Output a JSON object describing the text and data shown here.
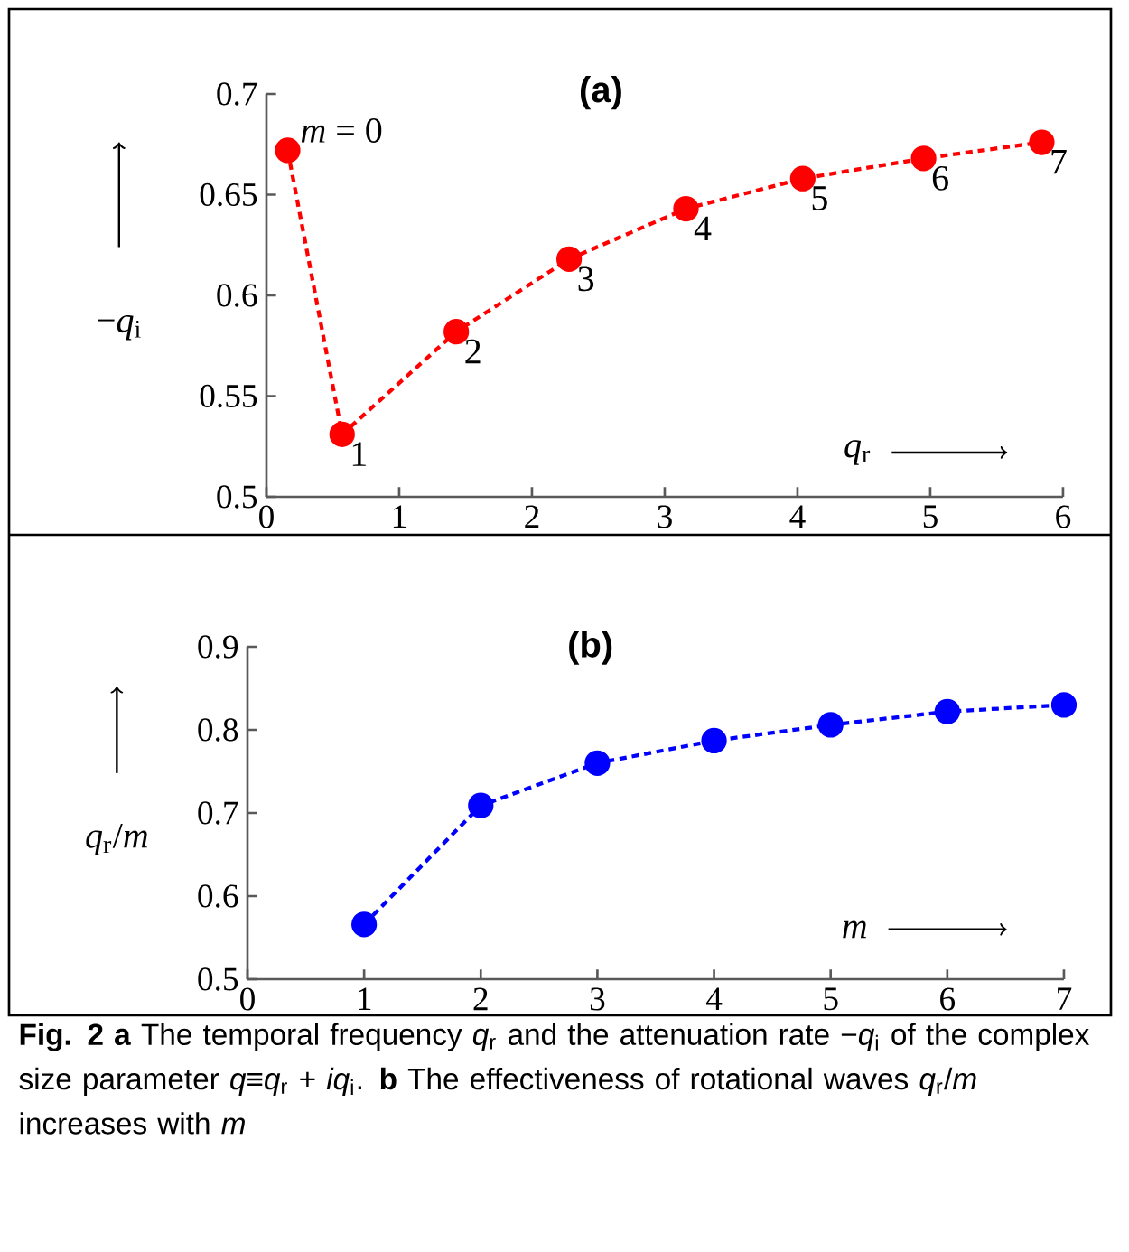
{
  "chart_data": [
    {
      "type": "line",
      "title": "(a)",
      "xlabel": "*q*$_{r}$",
      "ylabel": "−*q*$_{i}$",
      "series": [
        {
          "color": "#ff0000",
          "x": [
            0.16,
            0.57,
            1.43,
            2.28,
            3.16,
            4.04,
            4.95,
            5.84
          ],
          "values": [
            0.672,
            0.531,
            0.582,
            0.618,
            0.643,
            0.658,
            0.668,
            0.676
          ]
        }
      ],
      "xlim": [
        0,
        6
      ],
      "ylim": [
        0.5,
        0.7
      ],
      "xticks": [
        0,
        1,
        2,
        3,
        4,
        5,
        6
      ],
      "yticks": [
        0.5,
        0.55,
        0.6,
        0.65,
        0.7
      ],
      "marker": "circle",
      "line_style": "dashed",
      "annotations": [
        {
          "text": "*m* = 0",
          "x": 0.16,
          "y": 0.672
        },
        {
          "text": "1",
          "x": 0.57,
          "y": 0.531
        },
        {
          "text": "2",
          "x": 1.43,
          "y": 0.582
        },
        {
          "text": "3",
          "x": 2.28,
          "y": 0.618
        },
        {
          "text": "4",
          "x": 3.16,
          "y": 0.643
        },
        {
          "text": "5",
          "x": 4.04,
          "y": 0.658
        },
        {
          "text": "6",
          "x": 4.95,
          "y": 0.668
        },
        {
          "text": "7",
          "x": 5.84,
          "y": 0.676
        }
      ]
    },
    {
      "type": "line",
      "title": "(b)",
      "xlabel": "*m*",
      "ylabel": "*q*$_{r}$/*m*",
      "series": [
        {
          "color": "#0000ff",
          "x": [
            1,
            2,
            3,
            4,
            5,
            6,
            7
          ],
          "values": [
            0.566,
            0.709,
            0.76,
            0.787,
            0.806,
            0.822,
            0.83
          ]
        }
      ],
      "xlim": [
        0,
        7
      ],
      "ylim": [
        0.5,
        0.9
      ],
      "xticks": [
        0,
        1,
        2,
        3,
        4,
        5,
        6,
        7
      ],
      "yticks": [
        0.5,
        0.6,
        0.7,
        0.8,
        0.9
      ],
      "marker": "circle",
      "line_style": "dashed",
      "annotations": [
        "**Fig. 2 a** The temporal frequency *q*$_{r}$ and the attenuation rate −*q*$_{i}$ of the complex size parameter *q*≡*q*$_{r}$ + *iq*$_{i}$. **b** The effectiveness of rotational waves *q*$_{r}$/*m* increases with *m*"
      ]
    }
  ]
}
